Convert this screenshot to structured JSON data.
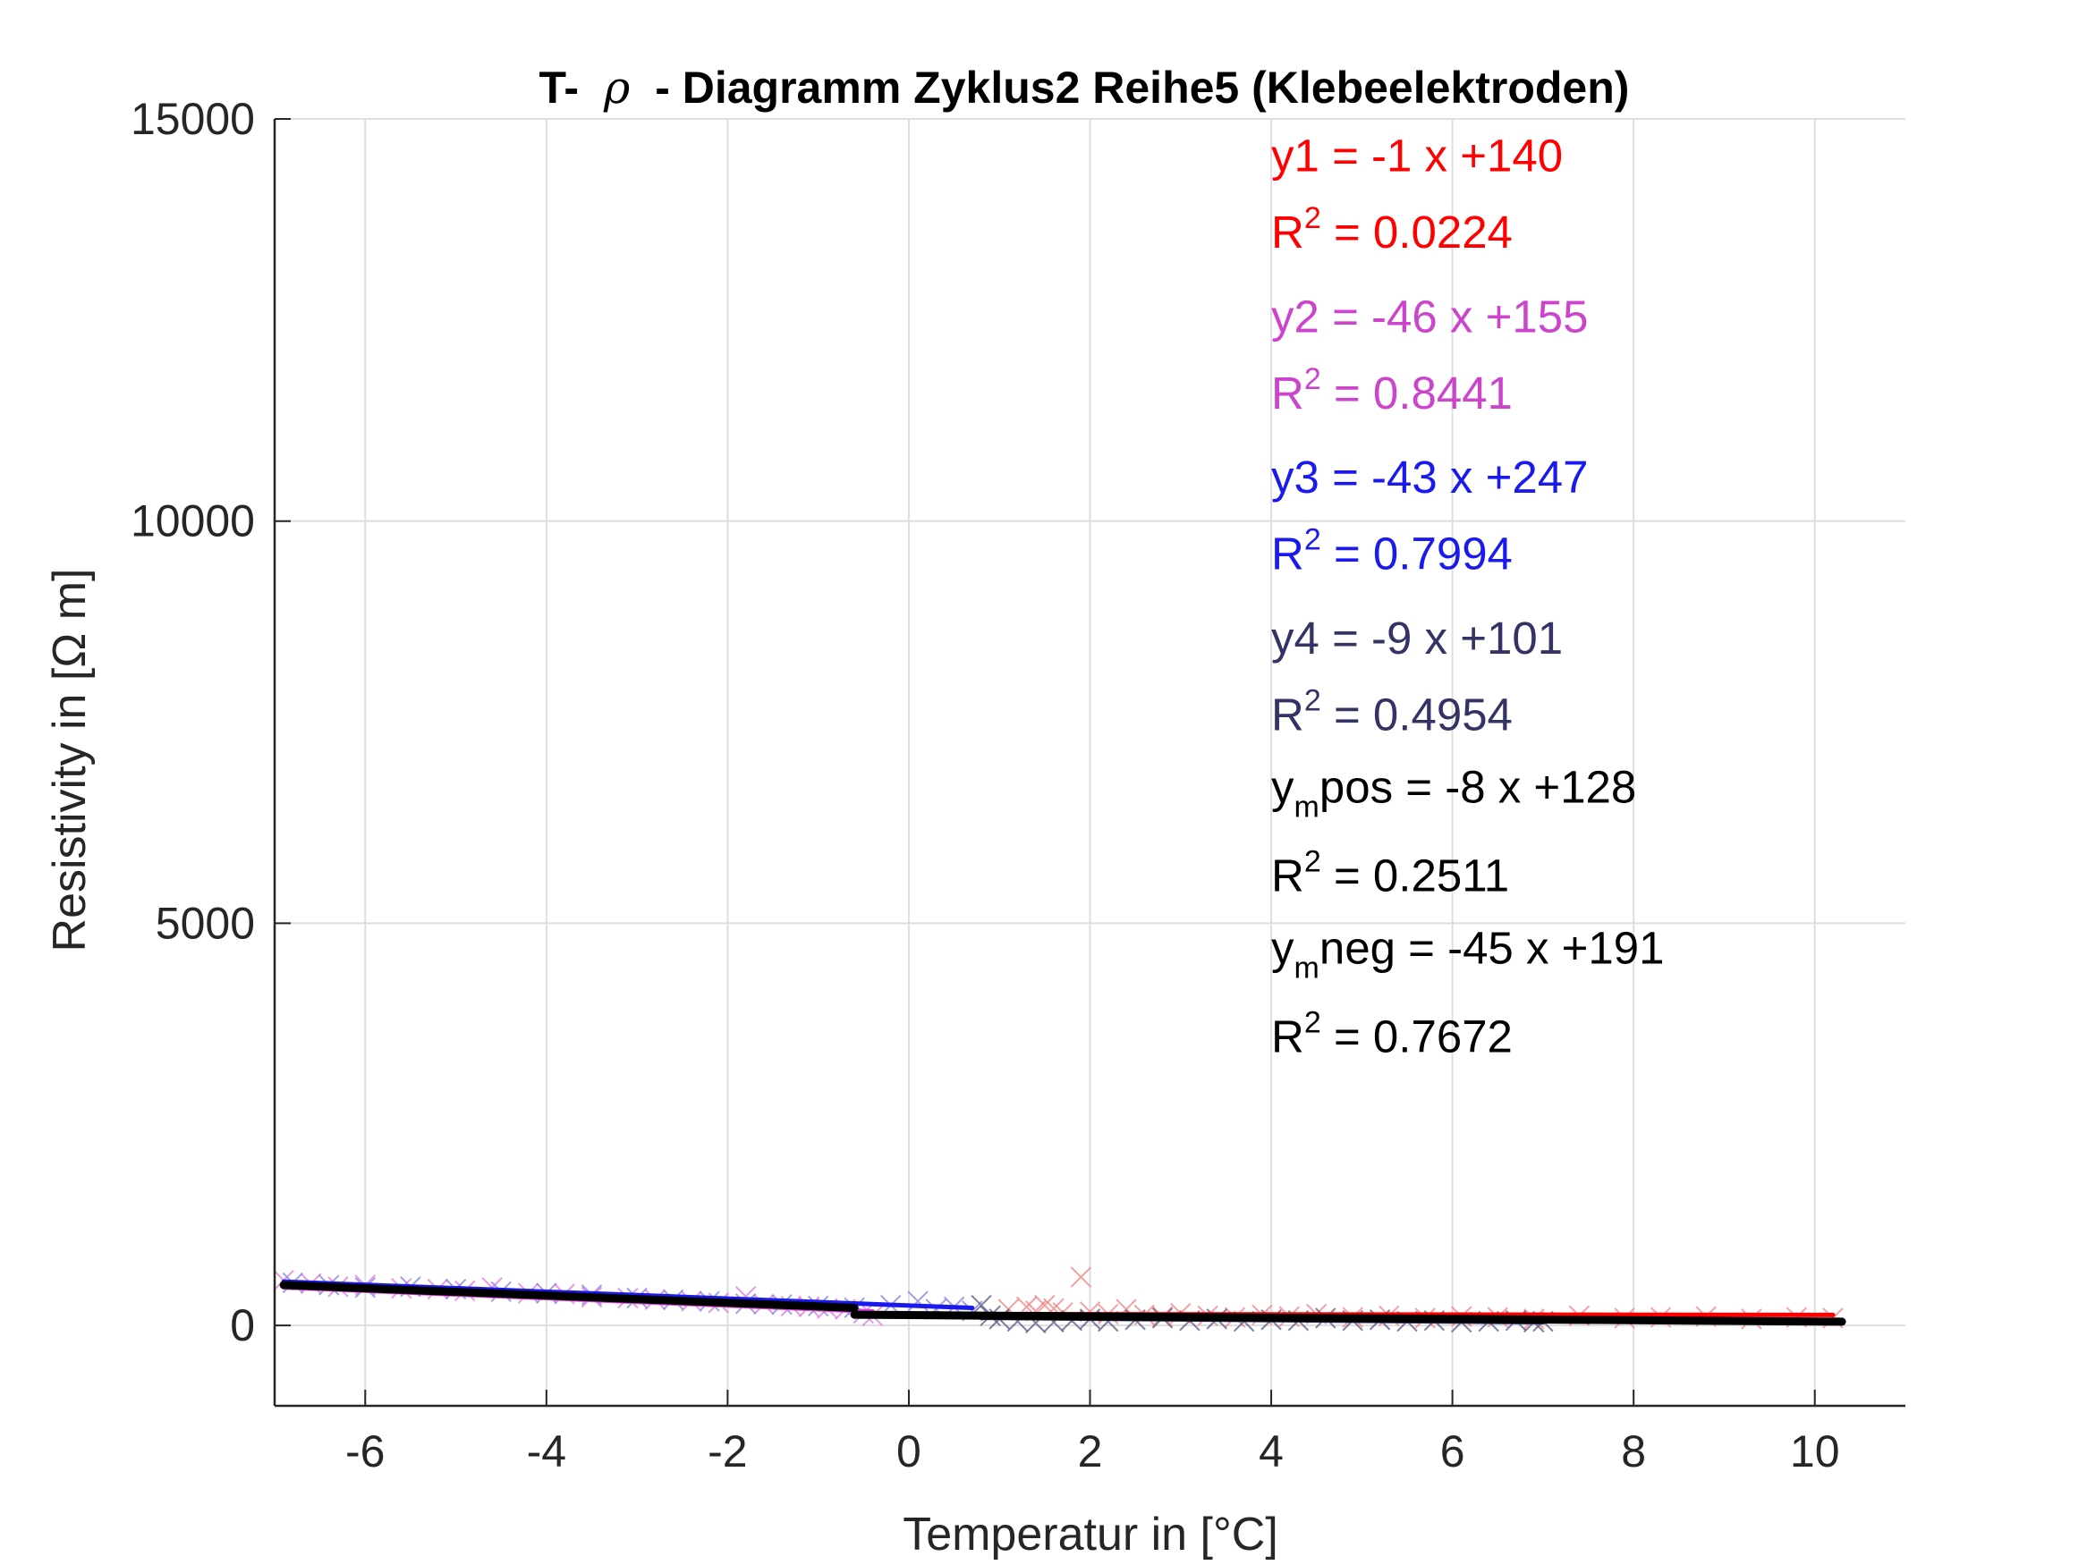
{
  "chart_data": {
    "type": "scatter",
    "title": "T- ρ - Diagramm Zyklus2 Reihe5 (Klebeelektroden)",
    "title_parts": {
      "prefix": "T-",
      "symbol": "ρ",
      "suffix": "- Diagramm Zyklus2 Reihe5 (Klebeelektroden)"
    },
    "xlabel": "Temperatur in [°C]",
    "ylabel": "Resistivity in [Ω m]",
    "xlim": [
      -7,
      11
    ],
    "ylim": [
      -1000,
      15000
    ],
    "xticks": [
      -6,
      -4,
      -2,
      0,
      2,
      4,
      6,
      8,
      10
    ],
    "xtick_labels": [
      "-6",
      "-4",
      "-2",
      "0",
      "2",
      "4",
      "6",
      "8",
      "10"
    ],
    "yticks": [
      0,
      5000,
      10000,
      15000
    ],
    "ytick_labels": [
      "0",
      "5000",
      "10000",
      "15000"
    ],
    "grid": true,
    "series": [
      {
        "color": "#f08080",
        "marker": "x",
        "points": [
          [
            1.1,
            200
          ],
          [
            1.3,
            230
          ],
          [
            1.4,
            180
          ],
          [
            1.5,
            250
          ],
          [
            1.6,
            210
          ],
          [
            1.7,
            160
          ],
          [
            1.9,
            600
          ],
          [
            2.0,
            170
          ],
          [
            2.2,
            140
          ],
          [
            2.4,
            200
          ],
          [
            2.6,
            130
          ],
          [
            2.8,
            110
          ],
          [
            3.0,
            150
          ],
          [
            3.3,
            120
          ],
          [
            3.6,
            100
          ],
          [
            3.9,
            130
          ],
          [
            4.2,
            110
          ],
          [
            4.5,
            140
          ],
          [
            4.9,
            100
          ],
          [
            5.3,
            120
          ],
          [
            5.7,
            90
          ],
          [
            6.1,
            110
          ],
          [
            6.5,
            100
          ],
          [
            6.9,
            80
          ],
          [
            7.4,
            120
          ],
          [
            7.9,
            90
          ],
          [
            8.3,
            100
          ],
          [
            8.8,
            110
          ],
          [
            9.3,
            80
          ],
          [
            9.8,
            100
          ],
          [
            10.2,
            90
          ]
        ]
      },
      {
        "color": "#dd77dd",
        "marker": "x",
        "points": [
          [
            -6.9,
            560
          ],
          [
            -6.6,
            520
          ],
          [
            -6.3,
            480
          ],
          [
            -6.0,
            500
          ],
          [
            -5.6,
            460
          ],
          [
            -5.2,
            450
          ],
          [
            -4.9,
            430
          ],
          [
            -4.6,
            470
          ],
          [
            -4.2,
            400
          ],
          [
            -3.8,
            390
          ],
          [
            -3.5,
            350
          ],
          [
            -3.1,
            340
          ],
          [
            -2.8,
            320
          ],
          [
            -2.4,
            300
          ],
          [
            -2.1,
            280
          ],
          [
            -1.8,
            360
          ],
          [
            -1.6,
            260
          ],
          [
            -1.3,
            240
          ],
          [
            -1.1,
            230
          ],
          [
            -0.9,
            210
          ],
          [
            -0.7,
            200
          ],
          [
            -0.5,
            150
          ],
          [
            -0.4,
            120
          ]
        ]
      },
      {
        "color": "#8080e0",
        "marker": "x",
        "points": [
          [
            -6.8,
            530
          ],
          [
            -6.4,
            500
          ],
          [
            -6.0,
            470
          ],
          [
            -5.5,
            480
          ],
          [
            -5.0,
            450
          ],
          [
            -4.5,
            420
          ],
          [
            -4.0,
            400
          ],
          [
            -3.5,
            380
          ],
          [
            -3.0,
            340
          ],
          [
            -2.6,
            320
          ],
          [
            -2.2,
            300
          ],
          [
            -1.8,
            270
          ],
          [
            -1.4,
            260
          ],
          [
            -1.0,
            240
          ],
          [
            -0.6,
            220
          ],
          [
            -0.2,
            250
          ],
          [
            0.1,
            300
          ],
          [
            0.3,
            200
          ],
          [
            0.5,
            230
          ],
          [
            0.7,
            180
          ]
        ]
      },
      {
        "color": "#555580",
        "marker": "x",
        "points": [
          [
            0.8,
            250
          ],
          [
            0.9,
            120
          ],
          [
            1.0,
            80
          ],
          [
            1.2,
            50
          ],
          [
            1.4,
            30
          ],
          [
            1.6,
            40
          ],
          [
            1.8,
            60
          ],
          [
            2.0,
            80
          ],
          [
            2.2,
            50
          ],
          [
            2.5,
            70
          ],
          [
            2.8,
            90
          ],
          [
            3.1,
            60
          ],
          [
            3.4,
            80
          ],
          [
            3.7,
            50
          ],
          [
            4.0,
            70
          ],
          [
            4.3,
            60
          ],
          [
            4.6,
            90
          ],
          [
            4.9,
            60
          ],
          [
            5.2,
            70
          ],
          [
            5.5,
            50
          ],
          [
            5.8,
            60
          ],
          [
            6.1,
            40
          ],
          [
            6.4,
            50
          ],
          [
            6.7,
            60
          ],
          [
            6.9,
            40
          ],
          [
            7.0,
            50
          ]
        ]
      }
    ],
    "fit_lines": [
      {
        "color": "#ff0000",
        "x": [
          1.1,
          10.2
        ],
        "y": [
          139,
          130
        ]
      },
      {
        "color": "#dd44dd",
        "x": [
          -6.9,
          -0.4
        ],
        "y": [
          472,
          173
        ]
      },
      {
        "color": "#1a1aee",
        "x": [
          -6.9,
          0.7
        ],
        "y": [
          544,
          217
        ]
      },
      {
        "color": "#333366",
        "x": [
          0.8,
          7.0
        ],
        "y": [
          94,
          38
        ]
      },
      {
        "color": "#000000",
        "x": [
          -0.6,
          10.3
        ],
        "y": [
          133,
          46
        ]
      },
      {
        "color": "#000000",
        "x": [
          -6.9,
          -0.6
        ],
        "y": [
          502,
          218
        ]
      }
    ],
    "annotations": [
      {
        "text": "y1 = -1 x +140",
        "color": "#ff0000",
        "x": 4,
        "y": 14350
      },
      {
        "text": "R",
        "sup": "2",
        "rest": " = 0.0224",
        "color": "#ff0000",
        "x": 4,
        "y": 13400
      },
      {
        "text": "y2 = -46 x +155",
        "color": "#cc44cc",
        "x": 4,
        "y": 12350
      },
      {
        "text": "R",
        "sup": "2",
        "rest": " = 0.8441",
        "color": "#cc44cc",
        "x": 4,
        "y": 11400
      },
      {
        "text": "y3 = -43 x +247",
        "color": "#1a1aee",
        "x": 4,
        "y": 10350
      },
      {
        "text": "R",
        "sup": "2",
        "rest": " = 0.7994",
        "color": "#1a1aee",
        "x": 4,
        "y": 9400
      },
      {
        "text": "y4 = -9 x +101",
        "color": "#333366",
        "x": 4,
        "y": 8350
      },
      {
        "text": "R",
        "sup": "2",
        "rest": " = 0.4954",
        "color": "#333366",
        "x": 4,
        "y": 7400
      },
      {
        "text": "y",
        "sub": "m",
        "rest": "pos = -8 x +128",
        "color": "#000000",
        "x": 4,
        "y": 6500
      },
      {
        "text": "R",
        "sup": "2",
        "rest": " = 0.2511",
        "color": "#000000",
        "x": 4,
        "y": 5400
      },
      {
        "text": "y",
        "sub": "m",
        "rest": "neg = -45 x +191",
        "color": "#000000",
        "x": 4,
        "y": 4500
      },
      {
        "text": "R",
        "sup": "2",
        "rest": " = 0.7672",
        "color": "#000000",
        "x": 4,
        "y": 3400
      }
    ]
  }
}
